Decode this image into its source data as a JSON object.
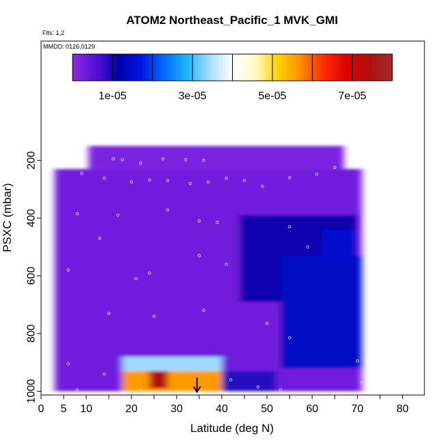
{
  "chart_data": {
    "type": "heatmap",
    "title": "ATOM2 Northeast_Pacific_1 MVK_GMI",
    "flights_note": "Flts: 1,2",
    "dates_note": "MMDD: 0126,0129",
    "xlabel": "Latitude (deg N)",
    "ylabel": "PSXC (mbar)",
    "xlim": [
      0,
      85
    ],
    "ylim": [
      1000,
      100
    ],
    "x_ticks": [
      0,
      5,
      10,
      20,
      30,
      40,
      50,
      60,
      70,
      80
    ],
    "x_tick_labels": [
      "0",
      "5",
      "10",
      "20",
      "30",
      "40",
      "50",
      "60",
      "70",
      "80"
    ],
    "x_minor_ticks": [
      15,
      25,
      35,
      45,
      55,
      65,
      75,
      85
    ],
    "y_ticks": [
      1000,
      800,
      600,
      400,
      200
    ],
    "y_tick_labels": [
      "1000",
      "800",
      "600",
      "400",
      "200"
    ],
    "colorbar": {
      "range": [
        0,
        8e-05
      ],
      "ticks": [
        1e-05,
        3e-05,
        5e-05,
        7e-05
      ],
      "tick_labels": [
        "1e-05",
        "3e-05",
        "5e-05",
        "7e-05"
      ],
      "colors": [
        "#8a2be2",
        "#5a10d8",
        "#0000aa",
        "#0014e0",
        "#006cff",
        "#1eb4ff",
        "#a8dcff",
        "#ffffff",
        "#fffbc4",
        "#ffd200",
        "#ff8c00",
        "#ff2800",
        "#e00000",
        "#b01010",
        "#a52a2a"
      ]
    },
    "background_value": 3e-06,
    "regions": [
      {
        "lat": [
          10.5,
          67
        ],
        "p": [
          150,
          230
        ],
        "value": 2e-06
      },
      {
        "lat": [
          3,
          71
        ],
        "p": [
          230,
          1000
        ],
        "value": 3e-06
      },
      {
        "lat": [
          44,
          70
        ],
        "p": [
          390,
          690
        ],
        "value": 1.1e-05
      },
      {
        "lat": [
          53,
          71
        ],
        "p": [
          530,
          920
        ],
        "value": 1.4e-05
      },
      {
        "lat": [
          62,
          70
        ],
        "p": [
          440,
          540
        ],
        "value": 1.5e-05
      },
      {
        "lat": [
          38,
          52
        ],
        "p": [
          930,
          1000
        ],
        "value": 9e-06
      },
      {
        "lat": [
          18,
          40
        ],
        "p": [
          880,
          930
        ],
        "value": 3.4e-05
      },
      {
        "lat": [
          18,
          40
        ],
        "p": [
          930,
          1000
        ],
        "value": 5.6e-05
      },
      {
        "lat": [
          24,
          28
        ],
        "p": [
          930,
          990
        ],
        "value": 7.4e-05
      }
    ],
    "obs_points": [
      {
        "lat": 16,
        "p": 195
      },
      {
        "lat": 18,
        "p": 198
      },
      {
        "lat": 22,
        "p": 210
      },
      {
        "lat": 27,
        "p": 195
      },
      {
        "lat": 32,
        "p": 198
      },
      {
        "lat": 36,
        "p": 200
      },
      {
        "lat": 9,
        "p": 245
      },
      {
        "lat": 14,
        "p": 262
      },
      {
        "lat": 20,
        "p": 275
      },
      {
        "lat": 24,
        "p": 268
      },
      {
        "lat": 28,
        "p": 270
      },
      {
        "lat": 33,
        "p": 280
      },
      {
        "lat": 37,
        "p": 275
      },
      {
        "lat": 41,
        "p": 262
      },
      {
        "lat": 45,
        "p": 270
      },
      {
        "lat": 49,
        "p": 290
      },
      {
        "lat": 55,
        "p": 260
      },
      {
        "lat": 61,
        "p": 248
      },
      {
        "lat": 65,
        "p": 225
      },
      {
        "lat": 8,
        "p": 385
      },
      {
        "lat": 17,
        "p": 390
      },
      {
        "lat": 28,
        "p": 372
      },
      {
        "lat": 35,
        "p": 410
      },
      {
        "lat": 39,
        "p": 415
      },
      {
        "lat": 2,
        "p": 520
      },
      {
        "lat": 6,
        "p": 580
      },
      {
        "lat": 13,
        "p": 470
      },
      {
        "lat": 24,
        "p": 590
      },
      {
        "lat": 35,
        "p": 530
      },
      {
        "lat": 41,
        "p": 560
      },
      {
        "lat": 55,
        "p": 430
      },
      {
        "lat": 59,
        "p": 500
      },
      {
        "lat": 15,
        "p": 730
      },
      {
        "lat": 25,
        "p": 740
      },
      {
        "lat": 21,
        "p": 610
      },
      {
        "lat": 36,
        "p": 720
      },
      {
        "lat": 50,
        "p": 765
      },
      {
        "lat": 55,
        "p": 815
      },
      {
        "lat": 6,
        "p": 905
      },
      {
        "lat": 14,
        "p": 940
      },
      {
        "lat": 2,
        "p": 995
      },
      {
        "lat": 8,
        "p": 995
      },
      {
        "lat": 22,
        "p": 995
      },
      {
        "lat": 42,
        "p": 960
      },
      {
        "lat": 48,
        "p": 985
      },
      {
        "lat": 53,
        "p": 995
      },
      {
        "lat": 70,
        "p": 895
      },
      {
        "lat": 71,
        "p": 970
      }
    ],
    "marker": {
      "lat": 34.5,
      "p": 1000,
      "symbol": "arrow-down"
    }
  }
}
